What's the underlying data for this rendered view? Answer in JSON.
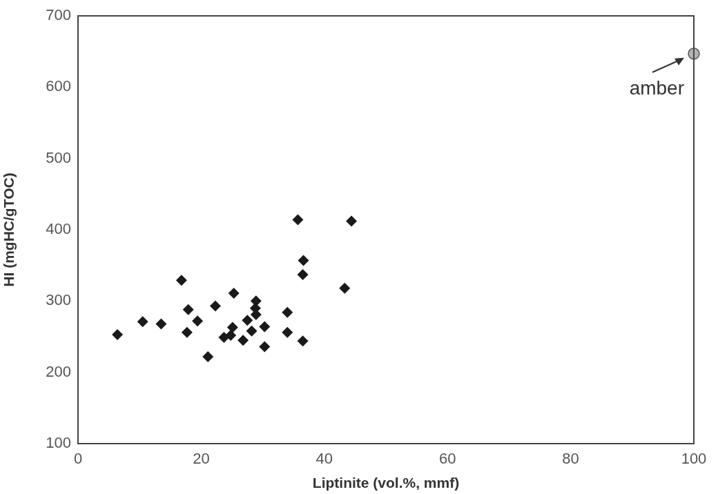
{
  "chart_data": {
    "type": "scatter",
    "xlabel": "Liptinite (vol.%, mmf)",
    "ylabel": "HI (mgHC/gTOC)",
    "xlim": [
      0,
      100
    ],
    "xticks": [
      0,
      20,
      40,
      60,
      80,
      100
    ],
    "ylim": [
      100,
      700
    ],
    "yticks": [
      100,
      200,
      300,
      400,
      500,
      600,
      700
    ],
    "grid": false,
    "legend": false,
    "series": [
      {
        "color": "#1a1a1a",
        "marker": "diamond",
        "x": [
          35.7,
          44.4,
          36.6,
          36.5,
          43.3,
          16.8,
          25.3,
          28.9,
          28.8,
          28.9,
          34.0,
          17.9,
          22.3,
          10.5,
          13.5,
          19.4,
          27.5,
          6.4,
          17.7,
          25.1,
          28.2,
          30.3,
          34.0,
          23.7,
          24.8,
          26.8,
          36.5,
          30.3,
          21.1
        ],
        "values": [
          414,
          412,
          357,
          337,
          318,
          329,
          311,
          300,
          290,
          281,
          284,
          288,
          293,
          271,
          268,
          272,
          273,
          253,
          256,
          263,
          258,
          264,
          256,
          249,
          252,
          245,
          244,
          236,
          222
        ]
      },
      {
        "color": "#b3b3b3",
        "marker": "circle",
        "x": [
          100
        ],
        "values": [
          647
        ]
      }
    ],
    "annotations": [
      {
        "text": "amber",
        "x": 100,
        "y": 647
      }
    ]
  }
}
